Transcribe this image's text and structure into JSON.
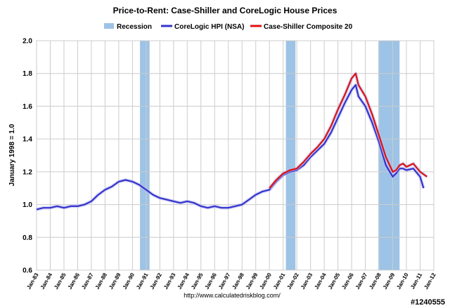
{
  "chart_data": {
    "type": "line",
    "title": "Price-to-Rent: Case-Shiller and CoreLogic House Prices",
    "ylabel": "January 1998 = 1.0",
    "xlabel": "",
    "ylim": [
      0.6,
      2.0
    ],
    "yticks": [
      "0.6",
      "0.8",
      "1.0",
      "1.2",
      "1.4",
      "1.6",
      "1.8",
      "2.0"
    ],
    "xlim": [
      1983,
      2012
    ],
    "xticks": [
      "Jan-83",
      "Jan-84",
      "Jan-85",
      "Jan-86",
      "Jan-87",
      "Jan-88",
      "Jan-89",
      "Jan-90",
      "Jan-91",
      "Jan-92",
      "Jan-93",
      "Jan-94",
      "Jan-95",
      "Jan-96",
      "Jan-97",
      "Jan-98",
      "Jan-99",
      "Jan-00",
      "Jan-01",
      "Jan-02",
      "Jan-03",
      "Jan-04",
      "Jan-05",
      "Jan-06",
      "Jan-07",
      "Jan-08",
      "Jan-09",
      "Jan-10",
      "Jan-11",
      "Jan-12"
    ],
    "grid": true,
    "legend_position": "top",
    "recession_periods": [
      [
        1990.55,
        1991.25
      ],
      [
        2001.2,
        2001.9
      ],
      [
        2007.95,
        2009.5
      ]
    ],
    "series": [
      {
        "name": "Recession",
        "color": "#9dc3e6",
        "style": "band"
      },
      {
        "name": "CoreLogic HPI (NSA)",
        "color": "#3333cc",
        "x": [
          1983.0,
          1983.5,
          1984.0,
          1984.5,
          1985.0,
          1985.5,
          1986.0,
          1986.5,
          1987.0,
          1987.5,
          1988.0,
          1988.5,
          1989.0,
          1989.5,
          1990.0,
          1990.5,
          1991.0,
          1991.5,
          1992.0,
          1992.5,
          1993.0,
          1993.5,
          1994.0,
          1994.5,
          1995.0,
          1995.5,
          1996.0,
          1996.5,
          1997.0,
          1997.5,
          1998.0,
          1998.5,
          1999.0,
          1999.5,
          2000.0,
          2000.5,
          2001.0,
          2001.5,
          2002.0,
          2002.5,
          2003.0,
          2003.5,
          2004.0,
          2004.5,
          2005.0,
          2005.5,
          2006.0,
          2006.3,
          2006.5,
          2007.0,
          2007.5,
          2008.0,
          2008.5,
          2009.0,
          2009.25,
          2009.5,
          2009.75,
          2010.0,
          2010.5,
          2011.0,
          2011.25
        ],
        "values": [
          0.97,
          0.98,
          0.98,
          0.99,
          0.98,
          0.99,
          0.99,
          1.0,
          1.02,
          1.06,
          1.09,
          1.11,
          1.14,
          1.15,
          1.14,
          1.12,
          1.09,
          1.06,
          1.04,
          1.03,
          1.02,
          1.01,
          1.02,
          1.01,
          0.99,
          0.98,
          0.99,
          0.98,
          0.98,
          0.99,
          1.0,
          1.03,
          1.06,
          1.08,
          1.09,
          1.14,
          1.18,
          1.2,
          1.21,
          1.24,
          1.29,
          1.33,
          1.37,
          1.44,
          1.53,
          1.62,
          1.7,
          1.73,
          1.66,
          1.6,
          1.5,
          1.38,
          1.24,
          1.17,
          1.19,
          1.22,
          1.22,
          1.21,
          1.22,
          1.17,
          1.1
        ]
      },
      {
        "name": "Case-Shiller Composite 20",
        "color": "#dd1111",
        "x": [
          2000.0,
          2000.5,
          2001.0,
          2001.5,
          2002.0,
          2002.5,
          2003.0,
          2003.5,
          2004.0,
          2004.5,
          2005.0,
          2005.5,
          2006.0,
          2006.3,
          2006.5,
          2007.0,
          2007.5,
          2008.0,
          2008.5,
          2009.0,
          2009.25,
          2009.5,
          2009.75,
          2010.0,
          2010.5,
          2011.0,
          2011.5
        ],
        "values": [
          1.1,
          1.15,
          1.19,
          1.21,
          1.22,
          1.26,
          1.31,
          1.35,
          1.4,
          1.48,
          1.58,
          1.67,
          1.77,
          1.8,
          1.73,
          1.66,
          1.55,
          1.42,
          1.29,
          1.2,
          1.21,
          1.24,
          1.25,
          1.23,
          1.25,
          1.2,
          1.17
        ]
      }
    ],
    "source_text": "http://www.calculatedriskblog.com/",
    "watermark": "#1240555"
  }
}
